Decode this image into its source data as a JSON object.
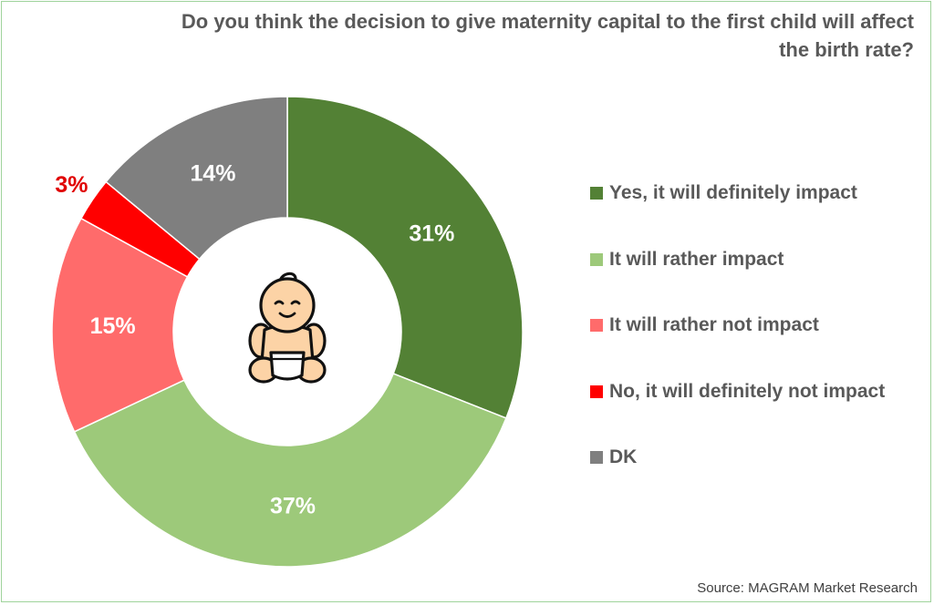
{
  "chart_data": {
    "type": "pie",
    "title": "Do you think the decision to give maternity capital to the first child will affect the birth rate?",
    "categories": [
      "Yes, it will definitely impact",
      "It will rather impact",
      "It will rather not impact",
      "No, it will definitely not impact",
      "DK"
    ],
    "values": [
      31,
      37,
      15,
      3,
      14
    ],
    "labels": [
      "31%",
      "37%",
      "15%",
      "3%",
      "14%"
    ],
    "colors": [
      "#538135",
      "#9dc97a",
      "#ff6b6b",
      "#ff0000",
      "#7f7f7f"
    ],
    "label_colors": [
      "#ffffff",
      "#ffffff",
      "#ffffff",
      "#e00000",
      "#ffffff"
    ],
    "donut": true,
    "legend_position": "right",
    "center_icon": "baby-icon"
  },
  "source": "Source: MAGRAM Market Research"
}
